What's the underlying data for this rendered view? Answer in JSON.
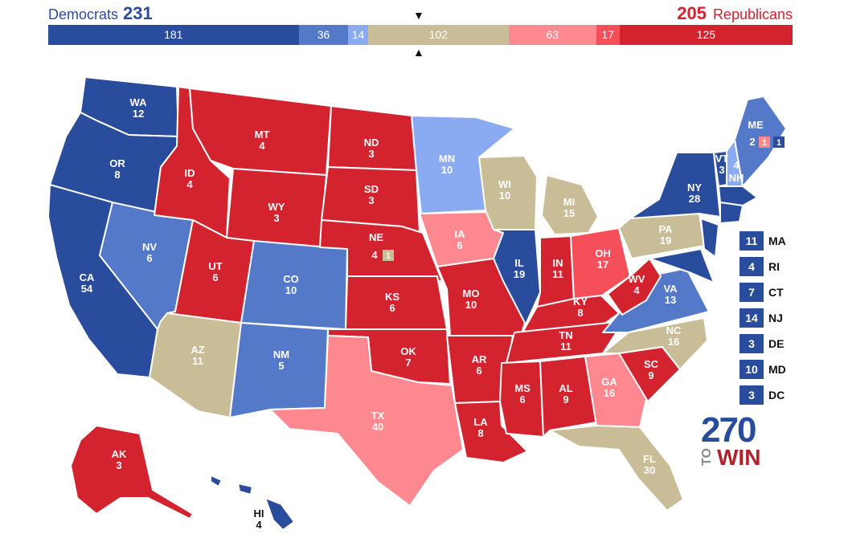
{
  "header": {
    "dem_label": "Democrats",
    "dem_total": "231",
    "rep_total": "205",
    "rep_label": "Republicans",
    "arrow_down": "▼",
    "arrow_up": "▲"
  },
  "colors": {
    "safe_d": "#2a4c9c",
    "likely_d": "#5479c8",
    "lean_d": "#8aabf2",
    "tossup": "#c9bd97",
    "lean_r": "#fd8890",
    "likely_r": "#f5505a",
    "safe_r": "#d2232f"
  },
  "bar": [
    {
      "value": "181",
      "color": "#2a4c9c",
      "weight": 181
    },
    {
      "value": "36",
      "color": "#5479c8",
      "weight": 36
    },
    {
      "value": "14",
      "color": "#8aabf2",
      "weight": 14
    },
    {
      "value": "102",
      "color": "#c9bd97",
      "weight": 102
    },
    {
      "value": "63",
      "color": "#fd8890",
      "weight": 63
    },
    {
      "value": "17",
      "color": "#f5505a",
      "weight": 17
    },
    {
      "value": "125",
      "color": "#d2232f",
      "weight": 125
    }
  ],
  "states": {
    "WA": {
      "abbr": "WA",
      "ev": "12"
    },
    "OR": {
      "abbr": "OR",
      "ev": "8"
    },
    "CA": {
      "abbr": "CA",
      "ev": "54"
    },
    "NV": {
      "abbr": "NV",
      "ev": "6"
    },
    "ID": {
      "abbr": "ID",
      "ev": "4"
    },
    "MT": {
      "abbr": "MT",
      "ev": "4"
    },
    "WY": {
      "abbr": "WY",
      "ev": "3"
    },
    "UT": {
      "abbr": "UT",
      "ev": "6"
    },
    "AZ": {
      "abbr": "AZ",
      "ev": "11"
    },
    "CO": {
      "abbr": "CO",
      "ev": "10"
    },
    "NM": {
      "abbr": "NM",
      "ev": "5"
    },
    "ND": {
      "abbr": "ND",
      "ev": "3"
    },
    "SD": {
      "abbr": "SD",
      "ev": "3"
    },
    "NE": {
      "abbr": "NE",
      "ev": "4",
      "district": "1"
    },
    "KS": {
      "abbr": "KS",
      "ev": "6"
    },
    "OK": {
      "abbr": "OK",
      "ev": "7"
    },
    "TX": {
      "abbr": "TX",
      "ev": "40"
    },
    "MN": {
      "abbr": "MN",
      "ev": "10"
    },
    "IA": {
      "abbr": "IA",
      "ev": "6"
    },
    "MO": {
      "abbr": "MO",
      "ev": "10"
    },
    "AR": {
      "abbr": "AR",
      "ev": "6"
    },
    "LA": {
      "abbr": "LA",
      "ev": "8"
    },
    "WI": {
      "abbr": "WI",
      "ev": "10"
    },
    "IL": {
      "abbr": "IL",
      "ev": "19"
    },
    "MI": {
      "abbr": "MI",
      "ev": "15"
    },
    "IN": {
      "abbr": "IN",
      "ev": "11"
    },
    "OH": {
      "abbr": "OH",
      "ev": "17"
    },
    "KY": {
      "abbr": "KY",
      "ev": "8"
    },
    "TN": {
      "abbr": "TN",
      "ev": "11"
    },
    "MS": {
      "abbr": "MS",
      "ev": "6"
    },
    "AL": {
      "abbr": "AL",
      "ev": "9"
    },
    "GA": {
      "abbr": "GA",
      "ev": "16"
    },
    "FL": {
      "abbr": "FL",
      "ev": "30"
    },
    "SC": {
      "abbr": "SC",
      "ev": "9"
    },
    "NC": {
      "abbr": "NC",
      "ev": "16"
    },
    "VA": {
      "abbr": "VA",
      "ev": "13"
    },
    "WV": {
      "abbr": "WV",
      "ev": "4"
    },
    "PA": {
      "abbr": "PA",
      "ev": "19"
    },
    "NY": {
      "abbr": "NY",
      "ev": "28"
    },
    "VT": {
      "abbr": "VT",
      "ev": "3"
    },
    "NH": {
      "abbr": "NH",
      "ev": "4"
    },
    "ME": {
      "abbr": "ME",
      "ev": "2",
      "d1": "1",
      "d2": "1"
    },
    "AK": {
      "abbr": "AK",
      "ev": "3"
    },
    "HI": {
      "abbr": "HI",
      "ev": "4"
    }
  },
  "northeast": [
    {
      "ev": "11",
      "abbr": "MA"
    },
    {
      "ev": "4",
      "abbr": "RI"
    },
    {
      "ev": "7",
      "abbr": "CT"
    },
    {
      "ev": "14",
      "abbr": "NJ"
    },
    {
      "ev": "3",
      "abbr": "DE"
    },
    {
      "ev": "10",
      "abbr": "MD"
    },
    {
      "ev": "3",
      "abbr": "DC"
    }
  ],
  "logo": {
    "number": "270",
    "to": "TO",
    "win": "WIN"
  }
}
